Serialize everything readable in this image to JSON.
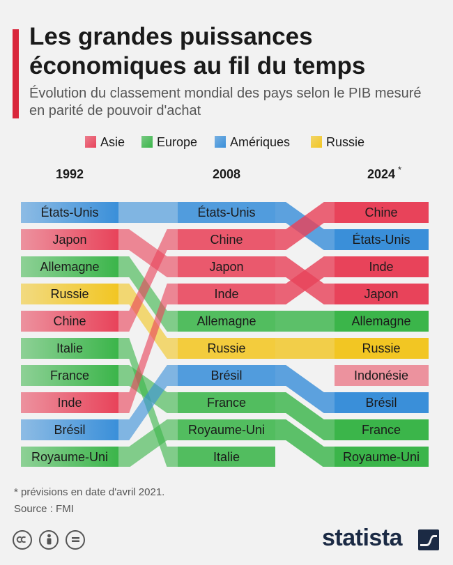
{
  "header": {
    "title": "Les grandes puissances économiques au fil du temps",
    "subtitle": "Évolution du classement mondial des pays selon le PIB mesuré en parité de pouvoir d'achat"
  },
  "legend": [
    {
      "label": "Asie",
      "color": "#e8435a"
    },
    {
      "label": "Europe",
      "color": "#3bb54a"
    },
    {
      "label": "Amériques",
      "color": "#3a8fd9"
    },
    {
      "label": "Russie",
      "color": "#f2c623"
    }
  ],
  "chart_data": {
    "type": "bump",
    "years": [
      "1992",
      "2008",
      "2024"
    ],
    "year_marker_2024": "*",
    "regions": {
      "Asie": "#e8435a",
      "Europe": "#3bb54a",
      "Amériques": "#3a8fd9",
      "Russie": "#f2c623"
    },
    "rankings": {
      "1992": [
        "États-Unis",
        "Japon",
        "Allemagne",
        "Russie",
        "Chine",
        "Italie",
        "France",
        "Inde",
        "Brésil",
        "Royaume-Uni"
      ],
      "2008": [
        "États-Unis",
        "Chine",
        "Japon",
        "Inde",
        "Allemagne",
        "Russie",
        "Brésil",
        "France",
        "Royaume-Uni",
        "Italie"
      ],
      "2024": [
        "Chine",
        "États-Unis",
        "Inde",
        "Japon",
        "Allemagne",
        "Russie",
        "Indonésie",
        "Brésil",
        "France",
        "Royaume-Uni"
      ]
    },
    "country_region": {
      "États-Unis": "Amériques",
      "Japon": "Asie",
      "Allemagne": "Europe",
      "Russie": "Russie",
      "Chine": "Asie",
      "Italie": "Europe",
      "France": "Europe",
      "Inde": "Asie",
      "Brésil": "Amériques",
      "Royaume-Uni": "Europe",
      "Indonésie": "Asie"
    }
  },
  "footer": {
    "note": "* prévisions en date d'avril 2021.",
    "source": "Source : FMI",
    "cc_icons": [
      "cc-icon",
      "by-icon",
      "nd-icon"
    ],
    "brand": "statista"
  }
}
